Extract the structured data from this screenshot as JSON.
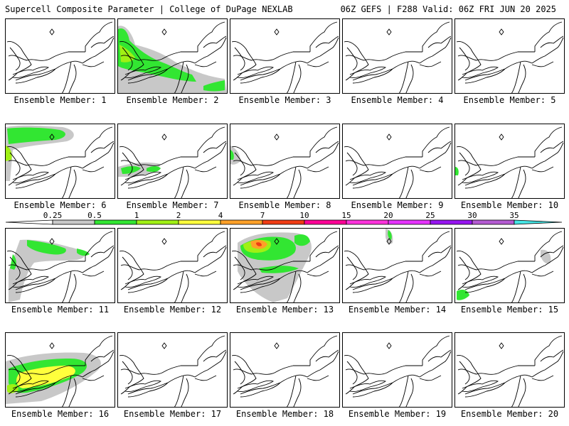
{
  "header": {
    "left": "Supercell Composite Parameter | College of DuPage NEXLAB",
    "right": "06Z GEFS | F288 Valid: 06Z FRI JUN 20 2025"
  },
  "members": [
    {
      "label": "Ensemble Member: 1"
    },
    {
      "label": "Ensemble Member: 2"
    },
    {
      "label": "Ensemble Member: 3"
    },
    {
      "label": "Ensemble Member: 4"
    },
    {
      "label": "Ensemble Member: 5"
    },
    {
      "label": "Ensemble Member: 6"
    },
    {
      "label": "Ensemble Member: 7"
    },
    {
      "label": "Ensemble Member: 8"
    },
    {
      "label": "Ensemble Member: 9"
    },
    {
      "label": "Ensemble Member: 10"
    },
    {
      "label": "Ensemble Member: 11"
    },
    {
      "label": "Ensemble Member: 12"
    },
    {
      "label": "Ensemble Member: 13"
    },
    {
      "label": "Ensemble Member: 14"
    },
    {
      "label": "Ensemble Member: 15"
    },
    {
      "label": "Ensemble Member: 16"
    },
    {
      "label": "Ensemble Member: 17"
    },
    {
      "label": "Ensemble Member: 18"
    },
    {
      "label": "Ensemble Member: 19"
    },
    {
      "label": "Ensemble Member: 20"
    }
  ],
  "colorbar": {
    "ticks": [
      "0.25",
      "0.5",
      "1",
      "2",
      "4",
      "7",
      "10",
      "15",
      "20",
      "25",
      "30",
      "35"
    ],
    "colors": [
      "#c8c8c8",
      "#32e632",
      "#a0f014",
      "#ffff3c",
      "#ffa028",
      "#f03c14",
      "#ff0096",
      "#ff32dc",
      "#e632ff",
      "#9614f0",
      "#b45ad2",
      "#46e6e6"
    ]
  },
  "colors": {
    "gray": "#c8c8c8",
    "green": "#32e632",
    "lime": "#a0f014",
    "yellow": "#ffff3c",
    "orange": "#ffa028",
    "red": "#f03c14"
  }
}
